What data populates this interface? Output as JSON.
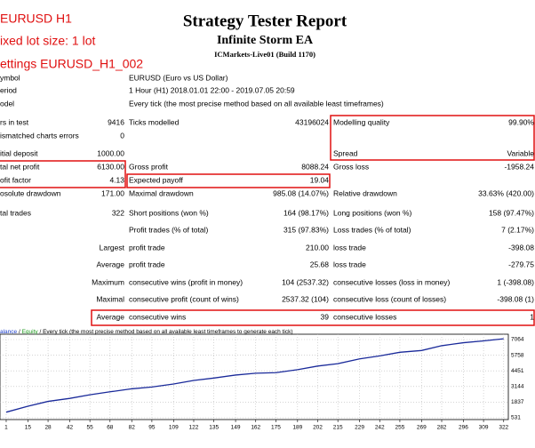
{
  "header": {
    "title": "Strategy Tester Report",
    "subtitle": "Infinite Storm EA",
    "server": "ICMarkets-Live01 (Build 1170)"
  },
  "notes": [
    "EURUSD H1",
    "ixed lot size: 1 lot",
    "ettings EURUSD_H1_002"
  ],
  "info_rows": [
    [
      "ymbol",
      "EURUSD (Euro vs US Dollar)"
    ],
    [
      "eriod",
      "1 Hour (H1) 2018.01.01 22:00 - 2019.07.05 20:59"
    ],
    [
      "odel",
      "Every tick (the most precise method based on all available least timeframes)"
    ]
  ],
  "stats_rows": [
    [
      "rs in test",
      "9416",
      "Ticks modelled",
      "43196024",
      "Modelling quality",
      "99.90%"
    ],
    [
      "ismatched charts errors",
      "0",
      null,
      null,
      null,
      null
    ],
    [
      "itial deposit",
      "1000.00",
      null,
      null,
      "Spread",
      "Variable"
    ],
    [
      "tal net profit",
      "6130.00",
      "Gross profit",
      "8088.24",
      "Gross loss",
      "-1958.24"
    ],
    [
      "ofit factor",
      "4.13",
      "Expected payoff",
      "19.04",
      null,
      null
    ],
    [
      "osolute drawdown",
      "171.00",
      "Maximal drawdown",
      "985.08 (14.07%)",
      "Relative drawdown",
      "33.63% (420.00)"
    ],
    [
      "tal trades",
      "322",
      "Short positions (won %)",
      "164 (98.17%)",
      "Long positions (won %)",
      "158 (97.47%)"
    ],
    [
      null,
      null,
      "Profit trades (% of total)",
      "315 (97.83%)",
      "Loss trades (% of total)",
      "7 (2.17%)"
    ],
    [
      "Largest",
      null,
      "profit trade",
      "210.00",
      "loss trade",
      "-398.08"
    ],
    [
      "Average",
      null,
      "profit trade",
      "25.68",
      "loss trade",
      "-279.75"
    ],
    [
      "Maximum",
      null,
      "consecutive wins (profit in money)",
      "104 (2537.32)",
      "consecutive losses (loss in money)",
      "1 (-398.08)"
    ],
    [
      "Maximal",
      null,
      "consecutive profit (count of wins)",
      "2537.32 (104)",
      "consecutive loss (count of losses)",
      "-398.08 (1)"
    ],
    [
      "Average",
      null,
      "consecutive wins",
      "39",
      "consecutive losses",
      "1"
    ]
  ],
  "chart_data": {
    "type": "line",
    "legend": [
      {
        "text": "alance",
        "color": "#1a3cc8"
      },
      {
        "text": " / ",
        "color": "#000000"
      },
      {
        "text": "Equity",
        "color": "#1f9a1f"
      },
      {
        "text": " / Every tick (the most precise method based on all available least timeframes to generate each tick)",
        "color": "#000000"
      }
    ],
    "x": [
      1,
      15,
      28,
      42,
      55,
      68,
      82,
      95,
      109,
      122,
      135,
      149,
      162,
      175,
      189,
      202,
      215,
      229,
      242,
      255,
      269,
      282,
      296,
      309,
      322
    ],
    "series": [
      {
        "color": "#1a2a9a",
        "values": [
          1000,
          1500,
          1900,
          2150,
          2450,
          2700,
          2950,
          3100,
          3350,
          3650,
          3850,
          4100,
          4250,
          4300,
          4550,
          4850,
          5050,
          5450,
          5700,
          6000,
          6150,
          6550,
          6800,
          6950,
          7130
        ]
      }
    ],
    "xlim": [
      -3,
      325
    ],
    "ylim": [
      383,
      7509
    ],
    "xticks": [
      1,
      15,
      28,
      42,
      55,
      68,
      82,
      95,
      109,
      122,
      135,
      149,
      162,
      175,
      189,
      202,
      215,
      229,
      242,
      255,
      269,
      282,
      296,
      309,
      322
    ],
    "yticks": [
      7064,
      5758,
      4451,
      3144,
      1837,
      531
    ],
    "grid": true
  }
}
